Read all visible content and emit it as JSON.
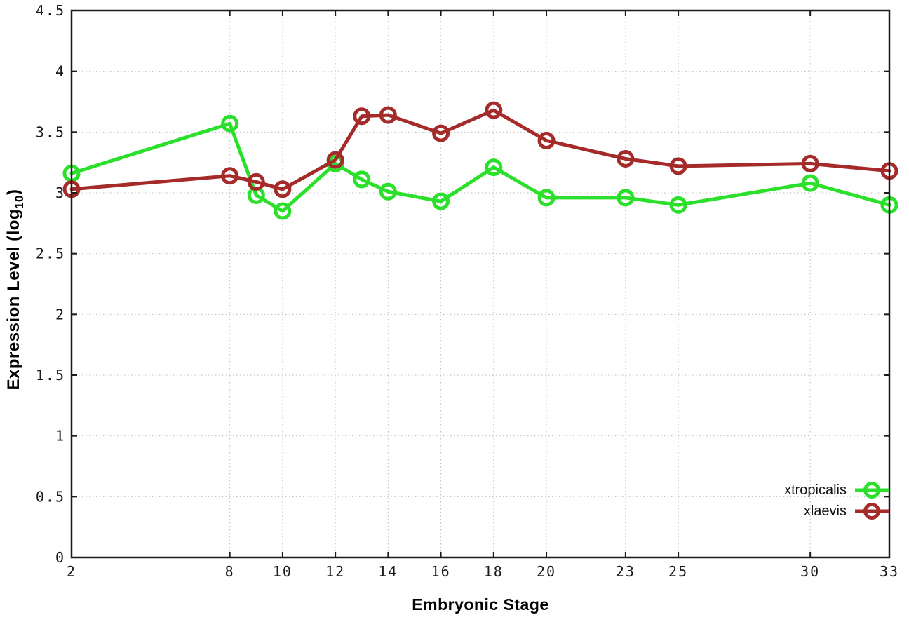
{
  "chart_data": {
    "type": "line",
    "title": "",
    "xlabel": "Embryonic Stage",
    "ylabel_main": "Expression Level (log",
    "ylabel_sub": "10",
    "ylabel_close": ")",
    "xlim": [
      2,
      33
    ],
    "ylim": [
      0,
      4.5
    ],
    "grid": "dotted",
    "legend_position": "inside-bottom-right",
    "axis_color": "#1a1a1a",
    "grid_color": "#bdbdbd",
    "x": [
      2,
      8,
      9,
      10,
      12,
      13,
      14,
      16,
      18,
      20,
      23,
      25,
      30,
      33
    ],
    "x_ticks": {
      "values": [
        2,
        8,
        10,
        12,
        14,
        16,
        18,
        20,
        23,
        25,
        30,
        33
      ],
      "labels": [
        "2",
        "8",
        "10",
        "12",
        "14",
        "16",
        "18",
        "20",
        "23",
        "25",
        "30",
        "33"
      ]
    },
    "y_ticks": {
      "values": [
        0,
        0.5,
        1,
        1.5,
        2,
        2.5,
        3,
        3.5,
        4,
        4.5
      ],
      "labels": [
        "0",
        "0.5",
        "1",
        "1.5",
        "2",
        "2.5",
        "3",
        "3.5",
        "4",
        "4.5"
      ]
    },
    "series": [
      {
        "name": "xtropicalis",
        "color": "#2ae02a",
        "marker": "open-circle",
        "values": [
          3.16,
          3.57,
          2.98,
          2.85,
          3.24,
          3.11,
          3.01,
          2.93,
          3.21,
          2.96,
          2.96,
          2.9,
          3.08,
          2.9
        ]
      },
      {
        "name": "xlaevis",
        "color": "#a52a2a",
        "marker": "open-circle",
        "values": [
          3.03,
          3.14,
          3.09,
          3.03,
          3.27,
          3.63,
          3.64,
          3.49,
          3.68,
          3.43,
          3.28,
          3.22,
          3.24,
          3.18
        ]
      }
    ]
  }
}
